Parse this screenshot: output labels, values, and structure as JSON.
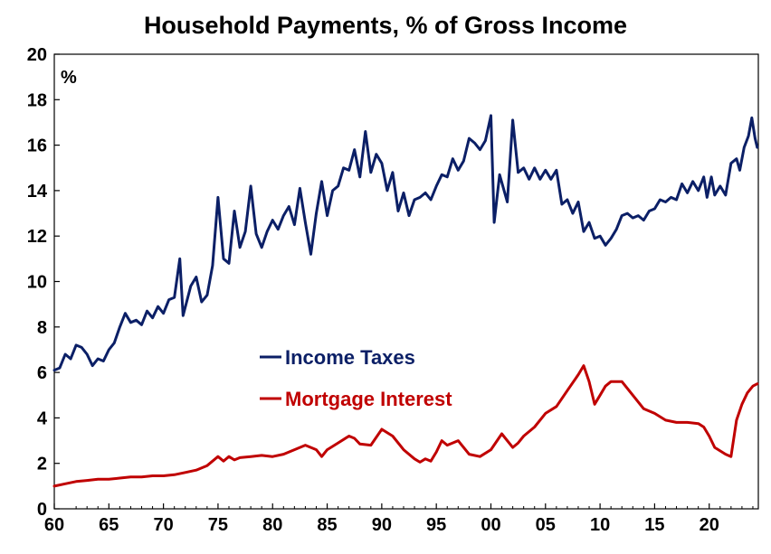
{
  "chart_data": {
    "type": "line",
    "title": "Household Payments, % of Gross Income",
    "unit_label": "%",
    "xlim": [
      1960,
      2024.5
    ],
    "ylim": [
      0,
      20
    ],
    "x_ticks": [
      {
        "value": 1960,
        "label": "60"
      },
      {
        "value": 1965,
        "label": "65"
      },
      {
        "value": 1970,
        "label": "70"
      },
      {
        "value": 1975,
        "label": "75"
      },
      {
        "value": 1980,
        "label": "80"
      },
      {
        "value": 1985,
        "label": "85"
      },
      {
        "value": 1990,
        "label": "90"
      },
      {
        "value": 1995,
        "label": "95"
      },
      {
        "value": 2000,
        "label": "00"
      },
      {
        "value": 2005,
        "label": "05"
      },
      {
        "value": 2010,
        "label": "10"
      },
      {
        "value": 2015,
        "label": "15"
      },
      {
        "value": 2020,
        "label": "20"
      }
    ],
    "y_ticks": [
      0,
      2,
      4,
      6,
      8,
      10,
      12,
      14,
      16,
      18,
      20
    ],
    "grid": false,
    "legend_position": "center-left",
    "series": [
      {
        "name": "Income Taxes",
        "color": "#0b1f66",
        "points": [
          [
            1960.0,
            6.1
          ],
          [
            1960.5,
            6.2
          ],
          [
            1961.0,
            6.8
          ],
          [
            1961.5,
            6.6
          ],
          [
            1962.0,
            7.2
          ],
          [
            1962.5,
            7.1
          ],
          [
            1963.0,
            6.8
          ],
          [
            1963.5,
            6.3
          ],
          [
            1964.0,
            6.6
          ],
          [
            1964.5,
            6.5
          ],
          [
            1965.0,
            7.0
          ],
          [
            1965.5,
            7.3
          ],
          [
            1966.0,
            8.0
          ],
          [
            1966.5,
            8.6
          ],
          [
            1967.0,
            8.2
          ],
          [
            1967.5,
            8.3
          ],
          [
            1968.0,
            8.1
          ],
          [
            1968.5,
            8.7
          ],
          [
            1969.0,
            8.4
          ],
          [
            1969.5,
            8.9
          ],
          [
            1970.0,
            8.6
          ],
          [
            1970.5,
            9.2
          ],
          [
            1971.0,
            9.3
          ],
          [
            1971.5,
            11.0
          ],
          [
            1971.8,
            8.5
          ],
          [
            1972.5,
            9.8
          ],
          [
            1973.0,
            10.2
          ],
          [
            1973.5,
            9.1
          ],
          [
            1974.0,
            9.4
          ],
          [
            1974.5,
            10.7
          ],
          [
            1975.0,
            13.7
          ],
          [
            1975.5,
            11.0
          ],
          [
            1976.0,
            10.8
          ],
          [
            1976.5,
            13.1
          ],
          [
            1977.0,
            11.5
          ],
          [
            1977.5,
            12.2
          ],
          [
            1978.0,
            14.2
          ],
          [
            1978.5,
            12.1
          ],
          [
            1979.0,
            11.5
          ],
          [
            1979.5,
            12.2
          ],
          [
            1980.0,
            12.7
          ],
          [
            1980.5,
            12.3
          ],
          [
            1981.0,
            12.9
          ],
          [
            1981.5,
            13.3
          ],
          [
            1982.0,
            12.5
          ],
          [
            1982.5,
            14.1
          ],
          [
            1983.0,
            12.6
          ],
          [
            1983.5,
            11.2
          ],
          [
            1984.0,
            13.0
          ],
          [
            1984.5,
            14.4
          ],
          [
            1985.0,
            12.9
          ],
          [
            1985.5,
            14.0
          ],
          [
            1986.0,
            14.2
          ],
          [
            1986.5,
            15.0
          ],
          [
            1987.0,
            14.9
          ],
          [
            1987.5,
            15.8
          ],
          [
            1988.0,
            14.6
          ],
          [
            1988.5,
            16.6
          ],
          [
            1989.0,
            14.8
          ],
          [
            1989.5,
            15.6
          ],
          [
            1990.0,
            15.2
          ],
          [
            1990.5,
            14.0
          ],
          [
            1991.0,
            14.8
          ],
          [
            1991.5,
            13.1
          ],
          [
            1992.0,
            13.9
          ],
          [
            1992.5,
            12.9
          ],
          [
            1993.0,
            13.6
          ],
          [
            1993.5,
            13.7
          ],
          [
            1994.0,
            13.9
          ],
          [
            1994.5,
            13.6
          ],
          [
            1995.0,
            14.2
          ],
          [
            1995.5,
            14.7
          ],
          [
            1996.0,
            14.6
          ],
          [
            1996.5,
            15.4
          ],
          [
            1997.0,
            14.9
          ],
          [
            1997.5,
            15.3
          ],
          [
            1998.0,
            16.3
          ],
          [
            1998.5,
            16.1
          ],
          [
            1999.0,
            15.8
          ],
          [
            1999.5,
            16.2
          ],
          [
            2000.0,
            17.3
          ],
          [
            2000.3,
            12.6
          ],
          [
            2000.8,
            14.7
          ],
          [
            2001.5,
            13.5
          ],
          [
            2002.0,
            17.1
          ],
          [
            2002.5,
            14.8
          ],
          [
            2003.0,
            15.0
          ],
          [
            2003.5,
            14.5
          ],
          [
            2004.0,
            15.0
          ],
          [
            2004.5,
            14.5
          ],
          [
            2005.0,
            14.9
          ],
          [
            2005.5,
            14.5
          ],
          [
            2006.0,
            14.9
          ],
          [
            2006.5,
            13.4
          ],
          [
            2007.0,
            13.6
          ],
          [
            2007.5,
            13.0
          ],
          [
            2008.0,
            13.5
          ],
          [
            2008.5,
            12.2
          ],
          [
            2009.0,
            12.6
          ],
          [
            2009.5,
            11.9
          ],
          [
            2010.0,
            12.0
          ],
          [
            2010.5,
            11.6
          ],
          [
            2011.0,
            11.9
          ],
          [
            2011.5,
            12.3
          ],
          [
            2012.0,
            12.9
          ],
          [
            2012.5,
            13.0
          ],
          [
            2013.0,
            12.8
          ],
          [
            2013.5,
            12.9
          ],
          [
            2014.0,
            12.7
          ],
          [
            2014.5,
            13.1
          ],
          [
            2015.0,
            13.2
          ],
          [
            2015.5,
            13.6
          ],
          [
            2016.0,
            13.5
          ],
          [
            2016.5,
            13.7
          ],
          [
            2017.0,
            13.6
          ],
          [
            2017.5,
            14.3
          ],
          [
            2018.0,
            13.9
          ],
          [
            2018.5,
            14.4
          ],
          [
            2019.0,
            14.0
          ],
          [
            2019.5,
            14.6
          ],
          [
            2019.8,
            13.7
          ],
          [
            2020.2,
            14.6
          ],
          [
            2020.5,
            13.8
          ],
          [
            2021.0,
            14.2
          ],
          [
            2021.5,
            13.8
          ],
          [
            2022.0,
            15.2
          ],
          [
            2022.5,
            15.4
          ],
          [
            2022.8,
            14.9
          ],
          [
            2023.2,
            15.9
          ],
          [
            2023.6,
            16.4
          ],
          [
            2023.9,
            17.2
          ],
          [
            2024.2,
            16.3
          ],
          [
            2024.4,
            15.9
          ]
        ]
      },
      {
        "name": "Mortgage Interest",
        "color": "#c00000",
        "points": [
          [
            1960.0,
            1.0
          ],
          [
            1961.0,
            1.1
          ],
          [
            1962.0,
            1.2
          ],
          [
            1963.0,
            1.25
          ],
          [
            1964.0,
            1.3
          ],
          [
            1965.0,
            1.3
          ],
          [
            1966.0,
            1.35
          ],
          [
            1967.0,
            1.4
          ],
          [
            1968.0,
            1.4
          ],
          [
            1969.0,
            1.45
          ],
          [
            1970.0,
            1.45
          ],
          [
            1971.0,
            1.5
          ],
          [
            1972.0,
            1.6
          ],
          [
            1973.0,
            1.7
          ],
          [
            1974.0,
            1.9
          ],
          [
            1974.5,
            2.1
          ],
          [
            1975.0,
            2.3
          ],
          [
            1975.5,
            2.1
          ],
          [
            1976.0,
            2.3
          ],
          [
            1976.5,
            2.15
          ],
          [
            1977.0,
            2.25
          ],
          [
            1978.0,
            2.3
          ],
          [
            1979.0,
            2.35
          ],
          [
            1980.0,
            2.3
          ],
          [
            1981.0,
            2.4
          ],
          [
            1982.0,
            2.6
          ],
          [
            1983.0,
            2.8
          ],
          [
            1983.5,
            2.7
          ],
          [
            1984.0,
            2.6
          ],
          [
            1984.5,
            2.3
          ],
          [
            1985.0,
            2.6
          ],
          [
            1986.0,
            2.9
          ],
          [
            1987.0,
            3.2
          ],
          [
            1987.5,
            3.1
          ],
          [
            1988.0,
            2.85
          ],
          [
            1989.0,
            2.8
          ],
          [
            1990.0,
            3.5
          ],
          [
            1991.0,
            3.2
          ],
          [
            1992.0,
            2.6
          ],
          [
            1993.0,
            2.2
          ],
          [
            1993.5,
            2.05
          ],
          [
            1994.0,
            2.2
          ],
          [
            1994.5,
            2.1
          ],
          [
            1995.0,
            2.5
          ],
          [
            1995.5,
            3.0
          ],
          [
            1996.0,
            2.8
          ],
          [
            1997.0,
            3.0
          ],
          [
            1998.0,
            2.4
          ],
          [
            1999.0,
            2.3
          ],
          [
            2000.0,
            2.6
          ],
          [
            2001.0,
            3.3
          ],
          [
            2002.0,
            2.7
          ],
          [
            2002.5,
            2.9
          ],
          [
            2003.0,
            3.2
          ],
          [
            2004.0,
            3.6
          ],
          [
            2005.0,
            4.2
          ],
          [
            2006.0,
            4.5
          ],
          [
            2007.0,
            5.2
          ],
          [
            2008.0,
            5.9
          ],
          [
            2008.5,
            6.3
          ],
          [
            2009.0,
            5.6
          ],
          [
            2009.5,
            4.6
          ],
          [
            2010.0,
            5.0
          ],
          [
            2010.5,
            5.4
          ],
          [
            2011.0,
            5.6
          ],
          [
            2012.0,
            5.6
          ],
          [
            2013.0,
            5.0
          ],
          [
            2014.0,
            4.4
          ],
          [
            2015.0,
            4.2
          ],
          [
            2016.0,
            3.9
          ],
          [
            2017.0,
            3.8
          ],
          [
            2018.0,
            3.8
          ],
          [
            2019.0,
            3.75
          ],
          [
            2019.5,
            3.6
          ],
          [
            2020.0,
            3.2
          ],
          [
            2020.5,
            2.7
          ],
          [
            2021.0,
            2.55
          ],
          [
            2021.5,
            2.4
          ],
          [
            2022.0,
            2.3
          ],
          [
            2022.5,
            3.9
          ],
          [
            2023.0,
            4.6
          ],
          [
            2023.5,
            5.1
          ],
          [
            2024.0,
            5.4
          ],
          [
            2024.4,
            5.5
          ]
        ]
      }
    ]
  }
}
